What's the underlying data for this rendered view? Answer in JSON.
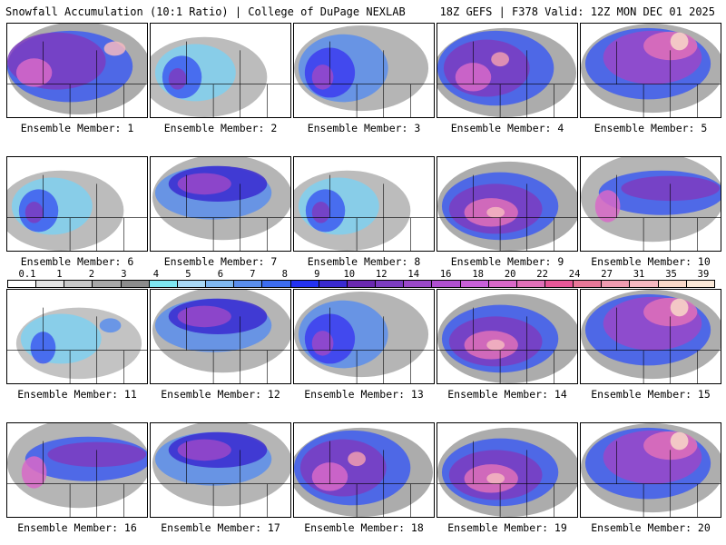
{
  "header": {
    "title": "Snowfall Accumulation (10:1 Ratio) | College of DuPage NEXLAB",
    "run_info": "18Z GEFS | F378 Valid: 12Z MON DEC 01 2025"
  },
  "legend": {
    "ticks": [
      "0.1",
      "1",
      "2",
      "3",
      "4",
      "5",
      "6",
      "7",
      "8",
      "9",
      "10",
      "12",
      "14",
      "16",
      "18",
      "20",
      "22",
      "24",
      "27",
      "31",
      "35",
      "39"
    ],
    "colors": [
      "#ffffff",
      "#e3e3e3",
      "#c8c8c8",
      "#a8a8a8",
      "#8c8c8c",
      "#7ee6f0",
      "#a8d8f4",
      "#7fb8f0",
      "#5a8eec",
      "#3c6cf0",
      "#2332f0",
      "#3a2ad0",
      "#6a28b0",
      "#7c3cc0",
      "#9a48c8",
      "#b050d0",
      "#c860d8",
      "#d868c8",
      "#e070b8",
      "#e85898",
      "#e87898",
      "#f09cb0",
      "#f4b8c0",
      "#f8d8c8",
      "#fae8d8"
    ]
  },
  "members": [
    {
      "label": "Ensemble Member: 1",
      "profile": "heavy-northwest"
    },
    {
      "label": "Ensemble Member: 2",
      "profile": "light-west"
    },
    {
      "label": "Ensemble Member: 3",
      "profile": "moderate-west"
    },
    {
      "label": "Ensemble Member: 4",
      "profile": "heavy-west"
    },
    {
      "label": "Ensemble Member: 5",
      "profile": "heavy-north"
    },
    {
      "label": "Ensemble Member: 6",
      "profile": "light-west"
    },
    {
      "label": "Ensemble Member: 7",
      "profile": "moderate-north"
    },
    {
      "label": "Ensemble Member: 8",
      "profile": "light-west"
    },
    {
      "label": "Ensemble Member: 9",
      "profile": "heavy-central"
    },
    {
      "label": "Ensemble Member: 10",
      "profile": "band-northeast"
    },
    {
      "label": "Ensemble Member: 11",
      "profile": "light-scattered"
    },
    {
      "label": "Ensemble Member: 12",
      "profile": "moderate-north"
    },
    {
      "label": "Ensemble Member: 13",
      "profile": "moderate-west"
    },
    {
      "label": "Ensemble Member: 14",
      "profile": "heavy-central"
    },
    {
      "label": "Ensemble Member: 15",
      "profile": "heavy-north"
    },
    {
      "label": "Ensemble Member: 16",
      "profile": "band-northeast"
    },
    {
      "label": "Ensemble Member: 17",
      "profile": "moderate-north"
    },
    {
      "label": "Ensemble Member: 18",
      "profile": "heavy-west"
    },
    {
      "label": "Ensemble Member: 19",
      "profile": "heavy-central"
    },
    {
      "label": "Ensemble Member: 20",
      "profile": "heavy-north"
    }
  ]
}
